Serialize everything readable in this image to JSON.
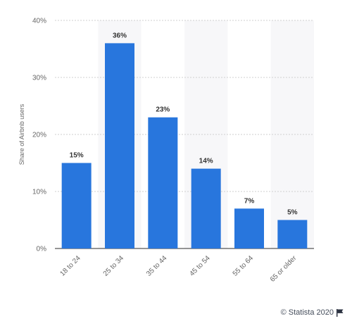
{
  "chart_data": {
    "type": "bar",
    "categories": [
      "18 to 24",
      "25 to 34",
      "35 to 44",
      "45 to 54",
      "55 to 64",
      "65 or older"
    ],
    "values": [
      15,
      36,
      23,
      14,
      7,
      5
    ],
    "data_labels": [
      "15%",
      "36%",
      "23%",
      "14%",
      "7%",
      "5%"
    ],
    "title": "",
    "xlabel": "",
    "ylabel": "Share of Airbnb users",
    "ylim": [
      0,
      40
    ],
    "yticks": [
      0,
      10,
      20,
      30,
      40
    ],
    "ytick_labels": [
      "0%",
      "10%",
      "20%",
      "30%",
      "40%"
    ],
    "grid": true,
    "bar_color": "#2876dd"
  },
  "footer": {
    "credit": "© Statista 2020",
    "flag_icon": "flag-icon"
  }
}
